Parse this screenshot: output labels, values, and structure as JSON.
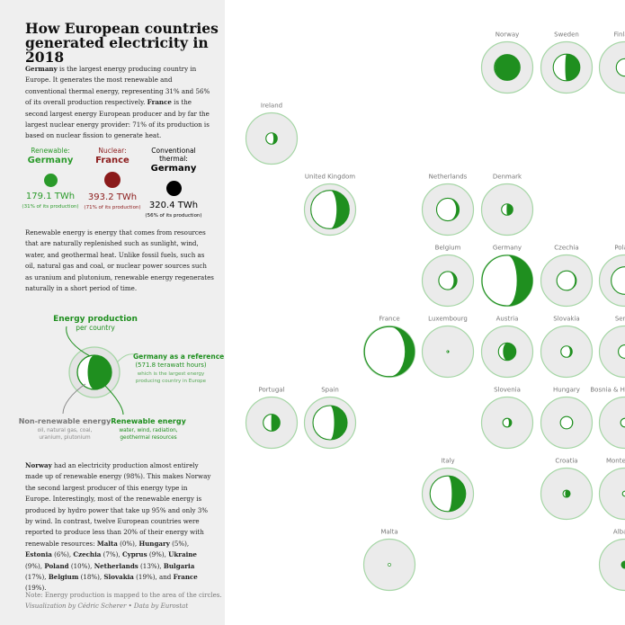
{
  "title_line1": "How European countries",
  "title_line2": "generated electricity in 2018",
  "intro": {
    "p1": "Germany",
    "p2": " is the largest energy producing country in Europe. It generates the most renewable and conventional thermal energy, representing 31% and 56% of its overall production respectively. ",
    "p3": "France",
    "p4": " is the second largest energy European producer and by far the largest nuclear energy provider: 71% of its production is based on nuclear fission to generate heat."
  },
  "stats": [
    {
      "label": "Renewable:",
      "country": "Germany",
      "value": "179.1 TWh",
      "pct": "(31% of its production)",
      "color": "#2a9a2a"
    },
    {
      "label": "Nuclear:",
      "country": "France",
      "value": "393.2 TWh",
      "pct": "(71% of its production)",
      "color": "#8b1a1a"
    },
    {
      "label": "Conventional thermal:",
      "country": "Germany",
      "value": "320.4 TWh",
      "pct": "(56% of its production)",
      "color": "#000000"
    }
  ],
  "renewable_def": "Renewable energy is energy that comes from resources that are naturally replenished such as sunlight, wind, water, and geothermal heat. Unlike fossil fuels, such as oil, natural gas and coal, or nuclear power sources such as uranium and plutonium, renewable energy regenerates naturally in a short period of time.",
  "legend": {
    "energy_production": "Energy production",
    "per_country": "per country",
    "reference_title": "Germany as a reference",
    "reference_value": "(571.8 terawatt hours)",
    "reference_note1": "which is the largest energy",
    "reference_note2": "producing country in Europe",
    "nonrenew_title": "Non-renewable energy",
    "nonrenew_note1": "oil, natural gas, coal,",
    "nonrenew_note2": "uranium, plutonium",
    "renew_title": "Renewable energy",
    "renew_note1": "water, wind, radiation,",
    "renew_note2": "geothermal resources"
  },
  "norway_text": {
    "t1": "Norway",
    "t2": " had an electricity production almost entirely made up of renewable energy (98%). This makes Norway the second largest producer of this energy type in Europe. Interestingly, most of the renewable energy is produced by hydro power that take up 95% and only 3% by wind. In contrast, twelve European countries were reported to produce less than 20% of their energy with renewable resources: ",
    "list": [
      {
        "name": "Malta",
        "pct": " (0%), "
      },
      {
        "name": "Hungary",
        "pct": " (5%), "
      },
      {
        "name": "Estonia",
        "pct": " (6%), "
      },
      {
        "name": "Czechia",
        "pct": " (7%), "
      },
      {
        "name": "Cyprus",
        "pct": " (9%), "
      },
      {
        "name": "Ukraine",
        "pct": " (9%), "
      },
      {
        "name": "Poland",
        "pct": " (10%), "
      },
      {
        "name": "Netherlands",
        "pct": " (13%), "
      },
      {
        "name": "Bulgaria",
        "pct": " (17%), "
      },
      {
        "name": "Belgium",
        "pct": " (18%), "
      },
      {
        "name": "Slovakia",
        "pct": " (19%), and "
      },
      {
        "name": "France",
        "pct": " (19%)."
      }
    ]
  },
  "note": "Note: Energy production is mapped to the area of the circles.",
  "credit": "Visualization by Cédric Scherer • Data by Eurostat",
  "colors": {
    "renewable": "#1f8f1f",
    "ring": "#a6d6a6",
    "bg_circle": "#ebebeb",
    "panel": "#efefef"
  },
  "chart_data": {
    "type": "tile-map proportional circles",
    "reference": "Germany",
    "countries": [
      {
        "name": "Norway",
        "col": 4,
        "row": 0,
        "production_share": 0.26,
        "renewable_share": 0.98
      },
      {
        "name": "Sweden",
        "col": 5,
        "row": 0,
        "production_share": 0.28,
        "renewable_share": 0.55
      },
      {
        "name": "Finland",
        "col": 6,
        "row": 0,
        "production_share": 0.12,
        "renewable_share": 0.36
      },
      {
        "name": "Ireland",
        "col": 0,
        "row": 1,
        "production_share": 0.05,
        "renewable_share": 0.33
      },
      {
        "name": "United Kingdom",
        "col": 1,
        "row": 2,
        "production_share": 0.58,
        "renewable_share": 0.33
      },
      {
        "name": "Netherlands",
        "col": 3,
        "row": 2,
        "production_share": 0.2,
        "renewable_share": 0.13
      },
      {
        "name": "Denmark",
        "col": 4,
        "row": 2,
        "production_share": 0.05,
        "renewable_share": 0.55
      },
      {
        "name": "Belgium",
        "col": 3,
        "row": 3,
        "production_share": 0.13,
        "renewable_share": 0.18
      },
      {
        "name": "Germany",
        "col": 4,
        "row": 3,
        "production_share": 1.0,
        "renewable_share": 0.31
      },
      {
        "name": "Czechia",
        "col": 5,
        "row": 3,
        "production_share": 0.15,
        "renewable_share": 0.07
      },
      {
        "name": "Poland",
        "col": 6,
        "row": 3,
        "production_share": 0.3,
        "renewable_share": 0.1
      },
      {
        "name": "France",
        "col": 2,
        "row": 4,
        "production_share": 0.98,
        "renewable_share": 0.19
      },
      {
        "name": "Luxembourg",
        "col": 3,
        "row": 4,
        "production_share": 0.002,
        "renewable_share": 0.6
      },
      {
        "name": "Austria",
        "col": 4,
        "row": 4,
        "production_share": 0.12,
        "renewable_share": 0.74
      },
      {
        "name": "Slovakia",
        "col": 5,
        "row": 4,
        "production_share": 0.05,
        "renewable_share": 0.19
      },
      {
        "name": "Serbia",
        "col": 6,
        "row": 4,
        "production_share": 0.07,
        "renewable_share": 0.28
      },
      {
        "name": "Portugal",
        "col": 0,
        "row": 5,
        "production_share": 0.11,
        "renewable_share": 0.52
      },
      {
        "name": "Spain",
        "col": 1,
        "row": 5,
        "production_share": 0.46,
        "renewable_share": 0.38
      },
      {
        "name": "Slovenia",
        "col": 4,
        "row": 5,
        "production_share": 0.03,
        "renewable_share": 0.3
      },
      {
        "name": "Hungary",
        "col": 5,
        "row": 5,
        "production_share": 0.06,
        "renewable_share": 0.05
      },
      {
        "name": "Bosnia & Herzegovina",
        "col": 6,
        "row": 5,
        "production_share": 0.03,
        "renewable_share": 0.35
      },
      {
        "name": "Italy",
        "col": 3,
        "row": 6,
        "production_share": 0.5,
        "renewable_share": 0.39
      },
      {
        "name": "Croatia",
        "col": 5,
        "row": 6,
        "production_share": 0.02,
        "renewable_share": 0.7
      },
      {
        "name": "Montenegro",
        "col": 6,
        "row": 6,
        "production_share": 0.01,
        "renewable_share": 0.5
      },
      {
        "name": "Malta",
        "col": 2,
        "row": 7,
        "production_share": 0.003,
        "renewable_share": 0.0
      },
      {
        "name": "Albania",
        "col": 6,
        "row": 7,
        "production_share": 0.02,
        "renewable_share": 1.0
      }
    ]
  }
}
